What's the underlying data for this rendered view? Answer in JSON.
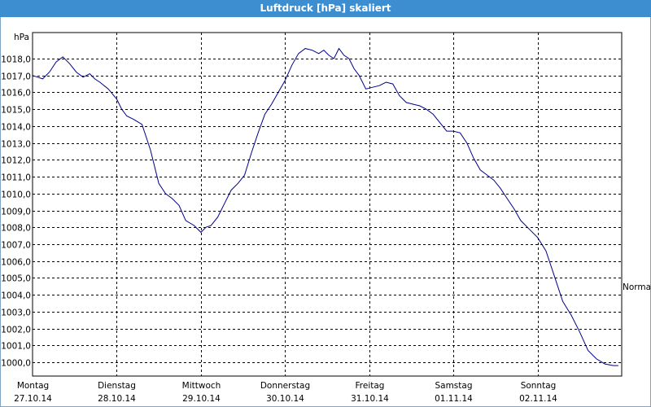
{
  "chart_data": {
    "type": "line",
    "title": "Luftdruck [hPa] skaliert",
    "ylabel": "hPa",
    "ylim": [
      1000.0,
      1018.0
    ],
    "yticks": [
      "1000,0",
      "1001,0",
      "1002,0",
      "1003,0",
      "1004,0",
      "1005,0",
      "1006,0",
      "1007,0",
      "1008,0",
      "1009,0",
      "1010,0",
      "1011,0",
      "1012,0",
      "1013,0",
      "1014,0",
      "1015,0",
      "1016,0",
      "1017,0",
      "1018,0"
    ],
    "xticks": [
      {
        "day": "Montag",
        "date": "27.10.14"
      },
      {
        "day": "Dienstag",
        "date": "28.10.14"
      },
      {
        "day": "Mittwoch",
        "date": "29.10.14"
      },
      {
        "day": "Donnerstag",
        "date": "30.10.14"
      },
      {
        "day": "Freitag",
        "date": "31.10.14"
      },
      {
        "day": "Samstag",
        "date": "01.11.14"
      },
      {
        "day": "Sonntag",
        "date": "02.11.14"
      }
    ],
    "xlim_days": [
      0,
      7
    ],
    "grid": true,
    "line_color": "#00008b",
    "annotation": "Normal",
    "series": [
      {
        "x": [
          0.0,
          0.06,
          0.12,
          0.2,
          0.28,
          0.36,
          0.44,
          0.52,
          0.6,
          0.68,
          0.74,
          0.8,
          0.9,
          1.0,
          1.06,
          1.12,
          1.2,
          1.3,
          1.4,
          1.5,
          1.58,
          1.66,
          1.74,
          1.82,
          1.92,
          2.0,
          2.06,
          2.12,
          2.2,
          2.28,
          2.36,
          2.44,
          2.52,
          2.6,
          2.68,
          2.76,
          2.84,
          2.92,
          3.0,
          3.08,
          3.16,
          3.24,
          3.32,
          3.4,
          3.46,
          3.52,
          3.58,
          3.64,
          3.7,
          3.76,
          3.82,
          3.88,
          3.96,
          4.04,
          4.12,
          4.2,
          4.28,
          4.36,
          4.44,
          4.52,
          4.6,
          4.68,
          4.76,
          4.84,
          4.92,
          5.0,
          5.08,
          5.16,
          5.24,
          5.32,
          5.4,
          5.48,
          5.56,
          5.64,
          5.72,
          5.8,
          5.9,
          6.0,
          6.1,
          6.2,
          6.3,
          6.4,
          6.5,
          6.6,
          6.7,
          6.8,
          6.9,
          6.96
        ],
        "y": [
          1017.0,
          1016.9,
          1016.8,
          1017.2,
          1017.8,
          1018.1,
          1017.7,
          1017.2,
          1016.9,
          1017.1,
          1016.8,
          1016.6,
          1016.2,
          1015.6,
          1015.0,
          1014.6,
          1014.4,
          1014.1,
          1012.6,
          1010.6,
          1010.0,
          1009.7,
          1009.3,
          1008.4,
          1008.1,
          1007.7,
          1008.0,
          1008.1,
          1008.6,
          1009.4,
          1010.2,
          1010.6,
          1011.1,
          1012.4,
          1013.6,
          1014.7,
          1015.3,
          1016.0,
          1016.7,
          1017.6,
          1018.3,
          1018.6,
          1018.5,
          1018.3,
          1018.5,
          1018.2,
          1018.0,
          1018.6,
          1018.2,
          1018.0,
          1017.4,
          1017.0,
          1016.2,
          1016.3,
          1016.4,
          1016.6,
          1016.5,
          1015.8,
          1015.4,
          1015.3,
          1015.2,
          1015.0,
          1014.7,
          1014.2,
          1013.7,
          1013.7,
          1013.6,
          1013.0,
          1012.1,
          1011.4,
          1011.1,
          1010.8,
          1010.3,
          1009.7,
          1009.1,
          1008.4,
          1007.9,
          1007.4,
          1006.6,
          1005.1,
          1003.6,
          1002.8,
          1001.8,
          1000.7,
          1000.2,
          999.9,
          999.8,
          999.8
        ]
      }
    ]
  }
}
